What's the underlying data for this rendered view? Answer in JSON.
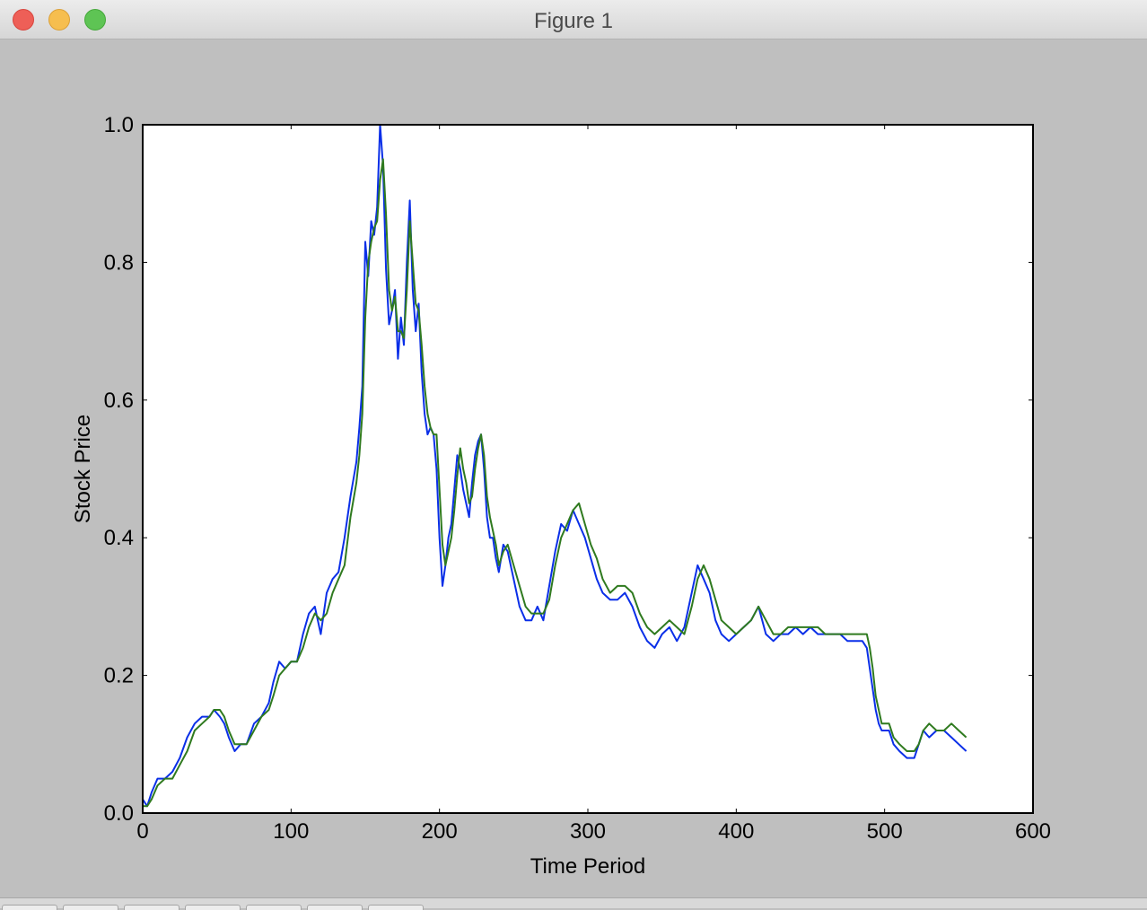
{
  "window": {
    "title": "Figure 1",
    "controls": [
      "close-icon",
      "minimize-icon",
      "zoom-icon"
    ]
  },
  "toolbar": {
    "buttons": [
      "home-icon",
      "back-icon",
      "forward-icon",
      "pan-icon",
      "zoom-rect-icon",
      "subplots-icon",
      "save-icon"
    ]
  },
  "chart_data": {
    "type": "line",
    "title": "",
    "xlabel": "Time Period",
    "ylabel": "Stock Price",
    "xlim": [
      0,
      600
    ],
    "ylim": [
      0.0,
      1.0
    ],
    "xticks": [
      0,
      100,
      200,
      300,
      400,
      500,
      600
    ],
    "xtick_labels": [
      "0",
      "100",
      "200",
      "300",
      "400",
      "500",
      "600"
    ],
    "yticks": [
      0.0,
      0.2,
      0.4,
      0.6,
      0.8,
      1.0
    ],
    "ytick_labels": [
      "0.0",
      "0.2",
      "0.4",
      "0.6",
      "0.8",
      "1.0"
    ],
    "grid": false,
    "legend": "none",
    "series": [
      {
        "color": "#0a2fe8",
        "x": [
          0,
          3,
          6,
          10,
          15,
          20,
          25,
          30,
          35,
          40,
          45,
          48,
          52,
          55,
          58,
          62,
          66,
          70,
          75,
          80,
          85,
          88,
          92,
          96,
          100,
          104,
          108,
          112,
          116,
          120,
          124,
          128,
          132,
          136,
          140,
          144,
          146,
          148,
          150,
          152,
          154,
          156,
          158,
          160,
          162,
          164,
          166,
          168,
          170,
          172,
          174,
          176,
          178,
          180,
          182,
          184,
          186,
          188,
          190,
          192,
          194,
          196,
          198,
          200,
          202,
          204,
          206,
          208,
          210,
          212,
          214,
          216,
          218,
          220,
          222,
          224,
          226,
          228,
          230,
          232,
          234,
          236,
          238,
          240,
          243,
          246,
          250,
          254,
          258,
          262,
          266,
          270,
          274,
          278,
          282,
          286,
          290,
          294,
          298,
          302,
          306,
          310,
          315,
          320,
          325,
          330,
          335,
          340,
          345,
          350,
          355,
          360,
          365,
          370,
          374,
          378,
          382,
          386,
          390,
          395,
          400,
          405,
          410,
          415,
          420,
          425,
          430,
          435,
          440,
          445,
          450,
          455,
          460,
          465,
          470,
          475,
          480,
          485,
          488,
          490,
          492,
          494,
          496,
          498,
          500,
          503,
          506,
          510,
          515,
          520,
          523,
          526,
          530,
          535,
          540,
          545,
          550,
          555
        ],
        "y": [
          0.02,
          0.01,
          0.03,
          0.05,
          0.05,
          0.06,
          0.08,
          0.11,
          0.13,
          0.14,
          0.14,
          0.15,
          0.14,
          0.13,
          0.11,
          0.09,
          0.1,
          0.1,
          0.13,
          0.14,
          0.16,
          0.19,
          0.22,
          0.21,
          0.22,
          0.22,
          0.26,
          0.29,
          0.3,
          0.26,
          0.32,
          0.34,
          0.35,
          0.4,
          0.46,
          0.51,
          0.56,
          0.62,
          0.83,
          0.78,
          0.86,
          0.84,
          0.88,
          1.0,
          0.94,
          0.79,
          0.71,
          0.73,
          0.76,
          0.66,
          0.72,
          0.68,
          0.8,
          0.89,
          0.76,
          0.7,
          0.74,
          0.64,
          0.58,
          0.55,
          0.56,
          0.55,
          0.5,
          0.4,
          0.33,
          0.36,
          0.4,
          0.42,
          0.47,
          0.52,
          0.5,
          0.47,
          0.45,
          0.43,
          0.48,
          0.52,
          0.54,
          0.55,
          0.5,
          0.43,
          0.4,
          0.4,
          0.37,
          0.35,
          0.39,
          0.38,
          0.34,
          0.3,
          0.28,
          0.28,
          0.3,
          0.28,
          0.33,
          0.38,
          0.42,
          0.41,
          0.44,
          0.42,
          0.4,
          0.37,
          0.34,
          0.32,
          0.31,
          0.31,
          0.32,
          0.3,
          0.27,
          0.25,
          0.24,
          0.26,
          0.27,
          0.25,
          0.27,
          0.32,
          0.36,
          0.34,
          0.32,
          0.28,
          0.26,
          0.25,
          0.26,
          0.27,
          0.28,
          0.3,
          0.26,
          0.25,
          0.26,
          0.26,
          0.27,
          0.26,
          0.27,
          0.26,
          0.26,
          0.26,
          0.26,
          0.25,
          0.25,
          0.25,
          0.24,
          0.21,
          0.18,
          0.15,
          0.13,
          0.12,
          0.12,
          0.12,
          0.1,
          0.09,
          0.08,
          0.08,
          0.1,
          0.12,
          0.11,
          0.12,
          0.12,
          0.11,
          0.1,
          0.09
        ]
      },
      {
        "color": "#2f7a1f",
        "x": [
          0,
          3,
          6,
          10,
          15,
          20,
          25,
          30,
          35,
          40,
          45,
          48,
          52,
          55,
          58,
          62,
          66,
          70,
          75,
          80,
          85,
          88,
          92,
          96,
          100,
          104,
          108,
          112,
          116,
          120,
          124,
          128,
          132,
          136,
          140,
          144,
          146,
          148,
          150,
          152,
          154,
          156,
          158,
          160,
          162,
          164,
          166,
          168,
          170,
          172,
          174,
          176,
          178,
          180,
          182,
          184,
          186,
          188,
          190,
          192,
          194,
          196,
          198,
          200,
          202,
          204,
          206,
          208,
          210,
          212,
          214,
          216,
          218,
          220,
          222,
          224,
          226,
          228,
          230,
          232,
          234,
          236,
          238,
          240,
          243,
          246,
          250,
          254,
          258,
          262,
          266,
          270,
          274,
          278,
          282,
          286,
          290,
          294,
          298,
          302,
          306,
          310,
          315,
          320,
          325,
          330,
          335,
          340,
          345,
          350,
          355,
          360,
          365,
          370,
          374,
          378,
          382,
          386,
          390,
          395,
          400,
          405,
          410,
          415,
          420,
          425,
          430,
          435,
          440,
          445,
          450,
          455,
          460,
          465,
          470,
          475,
          480,
          485,
          488,
          490,
          492,
          494,
          496,
          498,
          500,
          503,
          506,
          510,
          515,
          520,
          523,
          526,
          530,
          535,
          540,
          545,
          550,
          555
        ],
        "y": [
          0.01,
          0.01,
          0.02,
          0.04,
          0.05,
          0.05,
          0.07,
          0.09,
          0.12,
          0.13,
          0.14,
          0.15,
          0.15,
          0.14,
          0.12,
          0.1,
          0.1,
          0.1,
          0.12,
          0.14,
          0.15,
          0.17,
          0.2,
          0.21,
          0.22,
          0.22,
          0.24,
          0.27,
          0.29,
          0.28,
          0.29,
          0.32,
          0.34,
          0.36,
          0.43,
          0.48,
          0.52,
          0.58,
          0.72,
          0.8,
          0.83,
          0.85,
          0.86,
          0.92,
          0.95,
          0.87,
          0.76,
          0.73,
          0.75,
          0.7,
          0.7,
          0.69,
          0.76,
          0.86,
          0.8,
          0.74,
          0.73,
          0.68,
          0.62,
          0.58,
          0.56,
          0.55,
          0.55,
          0.47,
          0.39,
          0.36,
          0.38,
          0.4,
          0.44,
          0.49,
          0.53,
          0.5,
          0.48,
          0.45,
          0.46,
          0.5,
          0.53,
          0.55,
          0.52,
          0.46,
          0.43,
          0.41,
          0.39,
          0.36,
          0.38,
          0.39,
          0.36,
          0.33,
          0.3,
          0.29,
          0.29,
          0.29,
          0.31,
          0.36,
          0.4,
          0.42,
          0.44,
          0.45,
          0.42,
          0.39,
          0.37,
          0.34,
          0.32,
          0.33,
          0.33,
          0.32,
          0.29,
          0.27,
          0.26,
          0.27,
          0.28,
          0.27,
          0.26,
          0.3,
          0.34,
          0.36,
          0.34,
          0.31,
          0.28,
          0.27,
          0.26,
          0.27,
          0.28,
          0.3,
          0.28,
          0.26,
          0.26,
          0.27,
          0.27,
          0.27,
          0.27,
          0.27,
          0.26,
          0.26,
          0.26,
          0.26,
          0.26,
          0.26,
          0.26,
          0.24,
          0.21,
          0.17,
          0.15,
          0.13,
          0.13,
          0.13,
          0.11,
          0.1,
          0.09,
          0.09,
          0.1,
          0.12,
          0.13,
          0.12,
          0.12,
          0.13,
          0.12,
          0.11
        ]
      }
    ]
  }
}
